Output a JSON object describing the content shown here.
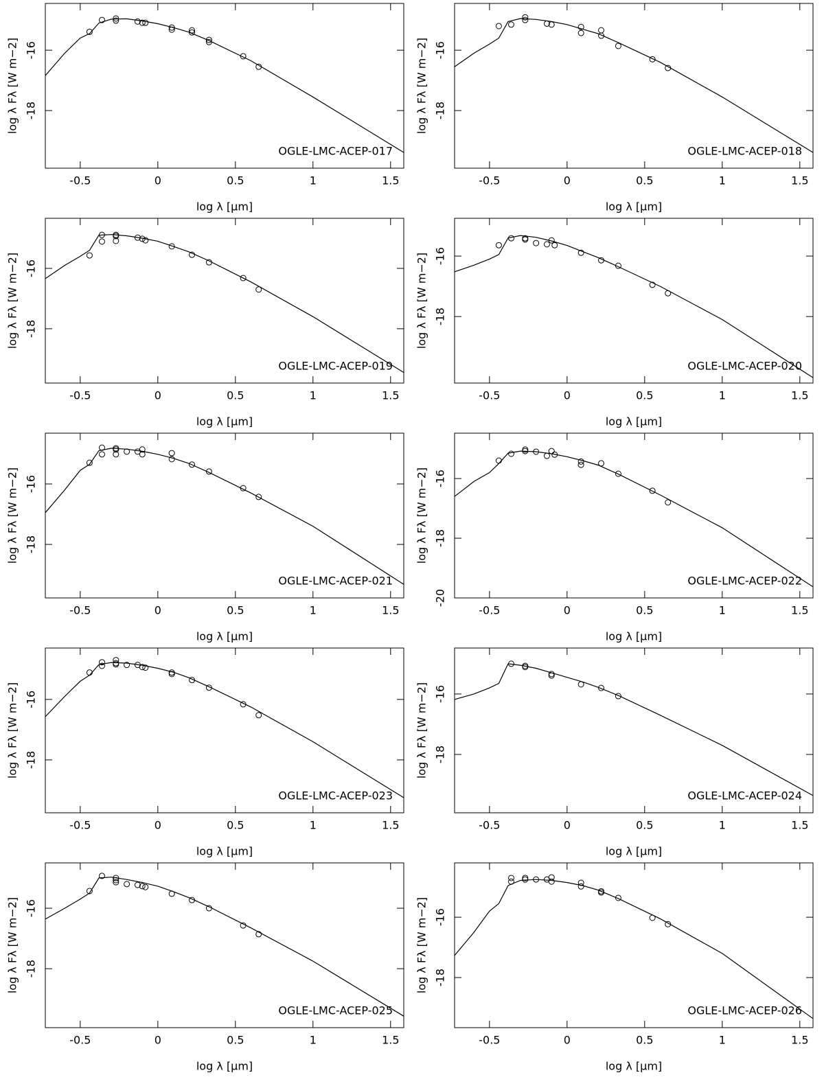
{
  "chart_data": [
    {
      "type": "scatter",
      "title": "OGLE-LMC-ACEP-017",
      "xlabel": "log λ [μm]",
      "ylabel": "log λ Fλ [W m−2]",
      "xlim": [
        -0.725,
        1.585
      ],
      "ylim": [
        -19.91,
        -14.45
      ],
      "xticks": [
        -0.5,
        0,
        0.5,
        1,
        1.5
      ],
      "yticks": [
        -16,
        -18
      ],
      "series": [
        {
          "style": "points",
          "color": "#000000",
          "x": [
            -0.44,
            -0.36,
            -0.27,
            -0.27,
            -0.13,
            -0.1,
            -0.08,
            0.09,
            0.09,
            0.22,
            0.22,
            0.33,
            0.33,
            0.55,
            0.65
          ],
          "values": [
            -15.39,
            -15.0,
            -14.95,
            -15.02,
            -15.05,
            -15.09,
            -15.09,
            -15.25,
            -15.32,
            -15.34,
            -15.41,
            -15.66,
            -15.73,
            -16.2,
            -16.55
          ]
        },
        {
          "style": "line",
          "color": "#000000",
          "x": [
            -0.725,
            -0.6,
            -0.5,
            -0.44,
            -0.38,
            -0.3,
            -0.2,
            -0.1,
            0,
            0.1,
            0.2,
            0.33,
            0.6,
            1,
            1.585
          ],
          "values": [
            -16.84,
            -16.1,
            -15.6,
            -15.45,
            -15.1,
            -14.97,
            -14.96,
            -15.03,
            -15.12,
            -15.25,
            -15.4,
            -15.68,
            -16.35,
            -17.55,
            -19.39
          ]
        }
      ]
    },
    {
      "type": "scatter",
      "title": "OGLE-LMC-ACEP-018",
      "xlabel": "log λ [μm]",
      "ylabel": "log λ Fλ [W m−2]",
      "xlim": [
        -0.725,
        1.585
      ],
      "ylim": [
        -19.91,
        -14.45
      ],
      "xticks": [
        -0.5,
        0,
        0.5,
        1,
        1.5
      ],
      "yticks": [
        -16,
        -18
      ],
      "series": [
        {
          "style": "points",
          "color": "#000000",
          "x": [
            -0.44,
            -0.36,
            -0.27,
            -0.27,
            -0.13,
            -0.1,
            0.09,
            0.09,
            0.22,
            0.22,
            0.33,
            0.55,
            0.65
          ],
          "values": [
            -15.2,
            -15.15,
            -14.91,
            -15.0,
            -15.12,
            -15.15,
            -15.23,
            -15.43,
            -15.34,
            -15.52,
            -15.86,
            -16.3,
            -16.59
          ]
        },
        {
          "style": "line",
          "color": "#000000",
          "x": [
            -0.725,
            -0.6,
            -0.5,
            -0.44,
            -0.38,
            -0.3,
            -0.2,
            -0.1,
            0,
            0.1,
            0.2,
            0.33,
            0.6,
            1,
            1.585
          ],
          "values": [
            -16.55,
            -16.1,
            -15.8,
            -15.6,
            -15.05,
            -14.95,
            -14.98,
            -15.05,
            -15.15,
            -15.3,
            -15.45,
            -15.75,
            -16.4,
            -17.55,
            -19.39
          ]
        }
      ]
    },
    {
      "type": "scatter",
      "title": "OGLE-LMC-ACEP-019",
      "xlabel": "log λ [μm]",
      "ylabel": "log λ Fλ [W m−2]",
      "xlim": [
        -0.725,
        1.585
      ],
      "ylim": [
        -19.8,
        -14.34
      ],
      "xticks": [
        -0.5,
        0,
        0.5,
        1,
        1.5
      ],
      "yticks": [
        -16,
        -18
      ],
      "series": [
        {
          "style": "points",
          "color": "#000000",
          "x": [
            -0.44,
            -0.36,
            -0.36,
            -0.27,
            -0.27,
            -0.27,
            -0.13,
            -0.1,
            -0.08,
            0.09,
            0.22,
            0.33,
            0.55,
            0.65
          ],
          "values": [
            -15.57,
            -14.89,
            -15.11,
            -14.89,
            -14.93,
            -15.09,
            -14.98,
            -15.02,
            -15.07,
            -15.27,
            -15.55,
            -15.8,
            -16.32,
            -16.7
          ]
        },
        {
          "style": "line",
          "color": "#000000",
          "x": [
            -0.725,
            -0.6,
            -0.5,
            -0.44,
            -0.38,
            -0.3,
            -0.2,
            -0.1,
            0,
            0.1,
            0.2,
            0.33,
            0.6,
            1,
            1.585
          ],
          "values": [
            -16.34,
            -15.9,
            -15.6,
            -15.4,
            -14.9,
            -14.88,
            -14.92,
            -15.0,
            -15.1,
            -15.27,
            -15.45,
            -15.75,
            -16.45,
            -17.6,
            -19.45
          ]
        }
      ]
    },
    {
      "type": "scatter",
      "title": "OGLE-LMC-ACEP-020",
      "xlabel": "log λ [μm]",
      "ylabel": "log λ Fλ [W m−2]",
      "xlim": [
        -0.725,
        1.585
      ],
      "ylim": [
        -20.2,
        -14.75
      ],
      "xticks": [
        -0.5,
        0,
        0.5,
        1,
        1.5
      ],
      "yticks": [
        -16,
        -18
      ],
      "series": [
        {
          "style": "points",
          "color": "#000000",
          "x": [
            -0.44,
            -0.36,
            -0.27,
            -0.27,
            -0.2,
            -0.13,
            -0.1,
            -0.08,
            0.09,
            0.22,
            0.33,
            0.55,
            0.65
          ],
          "values": [
            -15.64,
            -15.41,
            -15.41,
            -15.45,
            -15.57,
            -15.61,
            -15.48,
            -15.64,
            -15.89,
            -16.14,
            -16.32,
            -16.95,
            -17.23
          ]
        },
        {
          "style": "line",
          "color": "#000000",
          "x": [
            -0.725,
            -0.6,
            -0.5,
            -0.44,
            -0.38,
            -0.3,
            -0.2,
            -0.1,
            0,
            0.1,
            0.2,
            0.33,
            0.6,
            1,
            1.585
          ],
          "values": [
            -16.52,
            -16.3,
            -16.1,
            -15.95,
            -15.4,
            -15.32,
            -15.38,
            -15.5,
            -15.65,
            -15.85,
            -16.05,
            -16.35,
            -17.0,
            -18.1,
            -20.02
          ]
        }
      ]
    },
    {
      "type": "scatter",
      "title": "OGLE-LMC-ACEP-021",
      "xlabel": "log λ [μm]",
      "ylabel": "log λ Fλ [W m−2]",
      "xlim": [
        -0.725,
        1.585
      ],
      "ylim": [
        -19.77,
        -14.32
      ],
      "xticks": [
        -0.5,
        0,
        0.5,
        1,
        1.5
      ],
      "yticks": [
        -16,
        -18
      ],
      "series": [
        {
          "style": "points",
          "color": "#000000",
          "x": [
            -0.44,
            -0.36,
            -0.36,
            -0.27,
            -0.27,
            -0.27,
            -0.2,
            -0.13,
            -0.1,
            -0.1,
            0.09,
            0.09,
            0.22,
            0.33,
            0.55,
            0.65
          ],
          "values": [
            -15.3,
            -14.8,
            -15.02,
            -14.82,
            -14.86,
            -15.02,
            -14.93,
            -14.93,
            -14.86,
            -15.02,
            -14.98,
            -15.18,
            -15.36,
            -15.59,
            -16.14,
            -16.43
          ]
        },
        {
          "style": "line",
          "color": "#000000",
          "x": [
            -0.725,
            -0.6,
            -0.5,
            -0.44,
            -0.38,
            -0.3,
            -0.2,
            -0.1,
            0,
            0.1,
            0.2,
            0.33,
            0.6,
            1,
            1.585
          ],
          "values": [
            -16.95,
            -16.2,
            -15.55,
            -15.35,
            -14.9,
            -14.82,
            -14.85,
            -14.92,
            -15.02,
            -15.15,
            -15.32,
            -15.62,
            -16.3,
            -17.4,
            -19.32
          ]
        }
      ]
    },
    {
      "type": "scatter",
      "title": "OGLE-LMC-ACEP-022",
      "xlabel": "log λ [μm]",
      "ylabel": "log λ Fλ [W m−2]",
      "xlim": [
        -0.725,
        1.585
      ],
      "ylim": [
        -20,
        -14.48
      ],
      "xticks": [
        -0.5,
        0,
        0.5,
        1,
        1.5
      ],
      "yticks": [
        -16,
        -18,
        -20
      ],
      "series": [
        {
          "style": "points",
          "color": "#000000",
          "x": [
            -0.44,
            -0.36,
            -0.27,
            -0.27,
            -0.2,
            -0.13,
            -0.1,
            -0.08,
            0.09,
            0.09,
            0.22,
            0.33,
            0.55,
            0.65
          ],
          "values": [
            -15.4,
            -15.17,
            -15.03,
            -15.08,
            -15.1,
            -15.24,
            -15.08,
            -15.2,
            -15.43,
            -15.54,
            -15.49,
            -15.84,
            -16.41,
            -16.8
          ]
        },
        {
          "style": "line",
          "color": "#000000",
          "x": [
            -0.725,
            -0.6,
            -0.5,
            -0.44,
            -0.38,
            -0.3,
            -0.2,
            -0.1,
            0,
            0.1,
            0.2,
            0.33,
            0.6,
            1,
            1.585
          ],
          "values": [
            -16.6,
            -16.1,
            -15.8,
            -15.5,
            -15.15,
            -15.08,
            -15.1,
            -15.17,
            -15.27,
            -15.4,
            -15.55,
            -15.85,
            -16.55,
            -17.65,
            -19.63
          ]
        }
      ]
    },
    {
      "type": "scatter",
      "title": "OGLE-LMC-ACEP-023",
      "xlabel": "log λ [μm]",
      "ylabel": "log λ Fλ [W m−2]",
      "xlim": [
        -0.725,
        1.585
      ],
      "ylim": [
        -19.75,
        -14.3
      ],
      "xticks": [
        -0.5,
        0,
        0.5,
        1,
        1.5
      ],
      "yticks": [
        -16,
        -18
      ],
      "series": [
        {
          "style": "points",
          "color": "#000000",
          "x": [
            -0.44,
            -0.36,
            -0.36,
            -0.27,
            -0.27,
            -0.27,
            -0.2,
            -0.13,
            -0.1,
            -0.08,
            0.09,
            0.09,
            0.22,
            0.33,
            0.55,
            0.65
          ],
          "values": [
            -15.11,
            -14.77,
            -14.89,
            -14.7,
            -14.8,
            -14.84,
            -14.86,
            -14.86,
            -14.93,
            -14.95,
            -15.11,
            -15.16,
            -15.36,
            -15.61,
            -16.16,
            -16.52
          ]
        },
        {
          "style": "line",
          "color": "#000000",
          "x": [
            -0.725,
            -0.6,
            -0.5,
            -0.44,
            -0.38,
            -0.3,
            -0.2,
            -0.1,
            0,
            0.1,
            0.2,
            0.33,
            0.6,
            1,
            1.585
          ],
          "values": [
            -16.57,
            -15.9,
            -15.4,
            -15.2,
            -14.85,
            -14.78,
            -14.8,
            -14.87,
            -14.97,
            -15.1,
            -15.28,
            -15.58,
            -16.25,
            -17.4,
            -19.25
          ]
        }
      ]
    },
    {
      "type": "scatter",
      "title": "OGLE-LMC-ACEP-024",
      "xlabel": "log λ [μm]",
      "ylabel": "log λ Fλ [W m−2]",
      "xlim": [
        -0.725,
        1.585
      ],
      "ylim": [
        -19.93,
        -14.48
      ],
      "xticks": [
        -0.5,
        0,
        0.5,
        1,
        1.5
      ],
      "yticks": [
        -16,
        -18
      ],
      "series": [
        {
          "style": "points",
          "color": "#000000",
          "x": [
            -0.36,
            -0.27,
            -0.27,
            -0.1,
            -0.1,
            0.09,
            0.22,
            0.33
          ],
          "values": [
            -15.0,
            -15.07,
            -15.11,
            -15.34,
            -15.39,
            -15.68,
            -15.8,
            -16.07
          ]
        },
        {
          "style": "line",
          "color": "#000000",
          "x": [
            -0.725,
            -0.6,
            -0.5,
            -0.44,
            -0.38,
            -0.3,
            -0.2,
            -0.1,
            0,
            0.1,
            0.2,
            0.33,
            0.6,
            1,
            1.585
          ],
          "values": [
            -16.18,
            -16.0,
            -15.8,
            -15.65,
            -15.0,
            -15.05,
            -15.15,
            -15.3,
            -15.45,
            -15.6,
            -15.78,
            -16.05,
            -16.7,
            -17.7,
            -19.36
          ]
        }
      ]
    },
    {
      "type": "scatter",
      "title": "OGLE-LMC-ACEP-025",
      "xlabel": "log λ [μm]",
      "ylabel": "log λ Fλ [W m−2]",
      "xlim": [
        -0.725,
        1.585
      ],
      "ylim": [
        -19.95,
        -14.5
      ],
      "xticks": [
        -0.5,
        0,
        0.5,
        1,
        1.5
      ],
      "yticks": [
        -16,
        -18
      ],
      "series": [
        {
          "style": "points",
          "color": "#000000",
          "x": [
            -0.44,
            -0.36,
            -0.27,
            -0.27,
            -0.27,
            -0.2,
            -0.13,
            -0.1,
            -0.08,
            0.09,
            0.22,
            0.33,
            0.55,
            0.65
          ],
          "values": [
            -15.43,
            -14.93,
            -15.0,
            -15.07,
            -15.14,
            -15.2,
            -15.23,
            -15.27,
            -15.3,
            -15.52,
            -15.73,
            -16.0,
            -16.57,
            -16.86
          ]
        },
        {
          "style": "line",
          "color": "#000000",
          "x": [
            -0.725,
            -0.6,
            -0.5,
            -0.44,
            -0.38,
            -0.3,
            -0.2,
            -0.1,
            0,
            0.1,
            0.2,
            0.33,
            0.6,
            1,
            1.585
          ],
          "values": [
            -16.36,
            -16.0,
            -15.7,
            -15.5,
            -15.0,
            -14.97,
            -15.05,
            -15.15,
            -15.27,
            -15.45,
            -15.65,
            -15.95,
            -16.65,
            -17.75,
            -19.57
          ]
        }
      ]
    },
    {
      "type": "scatter",
      "title": "OGLE-LMC-ACEP-026",
      "xlabel": "log λ [μm]",
      "ylabel": "log λ Fλ [W m−2]",
      "xlim": [
        -0.725,
        1.585
      ],
      "ylim": [
        -19.66,
        -14.2
      ],
      "xticks": [
        -0.5,
        0,
        0.5,
        1,
        1.5
      ],
      "yticks": [
        -16,
        -18
      ],
      "series": [
        {
          "style": "points",
          "color": "#000000",
          "x": [
            -0.36,
            -0.36,
            -0.27,
            -0.27,
            -0.2,
            -0.13,
            -0.1,
            -0.1,
            0.09,
            0.09,
            0.22,
            0.22,
            0.33,
            0.55,
            0.65
          ],
          "values": [
            -14.7,
            -14.82,
            -14.7,
            -14.75,
            -14.75,
            -14.75,
            -14.68,
            -14.82,
            -14.86,
            -14.98,
            -15.14,
            -15.18,
            -15.36,
            -16.02,
            -16.23
          ]
        },
        {
          "style": "line",
          "color": "#000000",
          "x": [
            -0.725,
            -0.6,
            -0.5,
            -0.44,
            -0.38,
            -0.3,
            -0.2,
            -0.1,
            0,
            0.1,
            0.2,
            0.33,
            0.6,
            1,
            1.585
          ],
          "values": [
            -17.27,
            -16.5,
            -15.8,
            -15.55,
            -14.95,
            -14.78,
            -14.75,
            -14.78,
            -14.85,
            -14.95,
            -15.1,
            -15.38,
            -16.05,
            -17.2,
            -19.36
          ]
        }
      ]
    }
  ]
}
